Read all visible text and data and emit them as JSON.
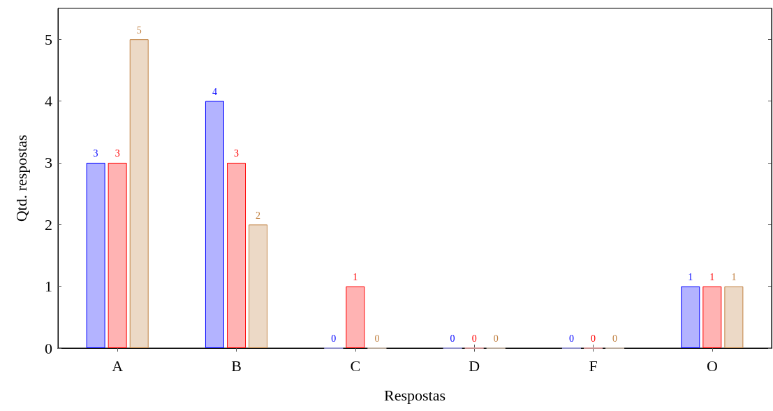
{
  "chart_data": {
    "type": "bar",
    "xlabel": "Respostas",
    "ylabel": "Qtd. respostas",
    "categories": [
      "A",
      "B",
      "C",
      "D",
      "F",
      "O"
    ],
    "series": [
      {
        "color": "#b3b3ff",
        "values": [
          3,
          4,
          0,
          0,
          0,
          1
        ]
      },
      {
        "color": "#ffb3b3",
        "values": [
          3,
          3,
          1,
          0,
          0,
          1
        ]
      },
      {
        "color": "#ecd9c6",
        "values": [
          5,
          2,
          0,
          0,
          0,
          1
        ]
      }
    ],
    "ylim": [
      0,
      5.5
    ],
    "yticks": [
      0,
      1,
      2,
      3,
      4,
      5
    ],
    "grid": false,
    "data_labels": true
  }
}
